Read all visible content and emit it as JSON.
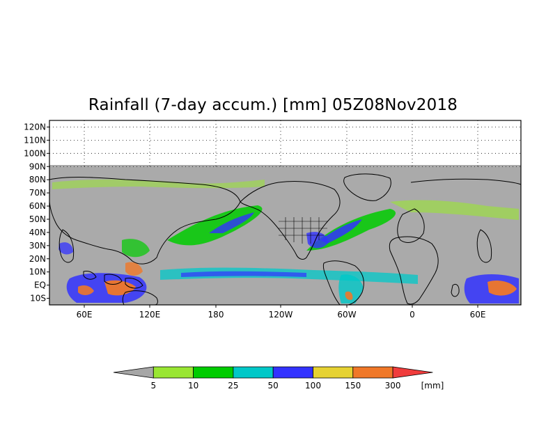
{
  "title": "Rainfall (7-day accum.) [mm] 05Z08Nov2018",
  "map": {
    "lat_labels": [
      "120N",
      "110N",
      "100N",
      "90N",
      "80N",
      "70N",
      "60N",
      "50N",
      "40N",
      "30N",
      "20N",
      "10N",
      "EQ",
      "10S"
    ],
    "lon_labels": [
      "60E",
      "120E",
      "180",
      "120W",
      "60W",
      "0",
      "60E"
    ],
    "ocean_color": "#aaaaaa",
    "no_data_color": "#ffffff",
    "coastline_color": "#000000"
  },
  "colorbar": {
    "labels": [
      "5",
      "10",
      "25",
      "50",
      "100",
      "150",
      "300"
    ],
    "colors": [
      "#a6a6a6",
      "#99e632",
      "#00cc00",
      "#00c8c8",
      "#3232ff",
      "#e6d232",
      "#f07828",
      "#f03c3c"
    ],
    "unit": "[mm]"
  }
}
